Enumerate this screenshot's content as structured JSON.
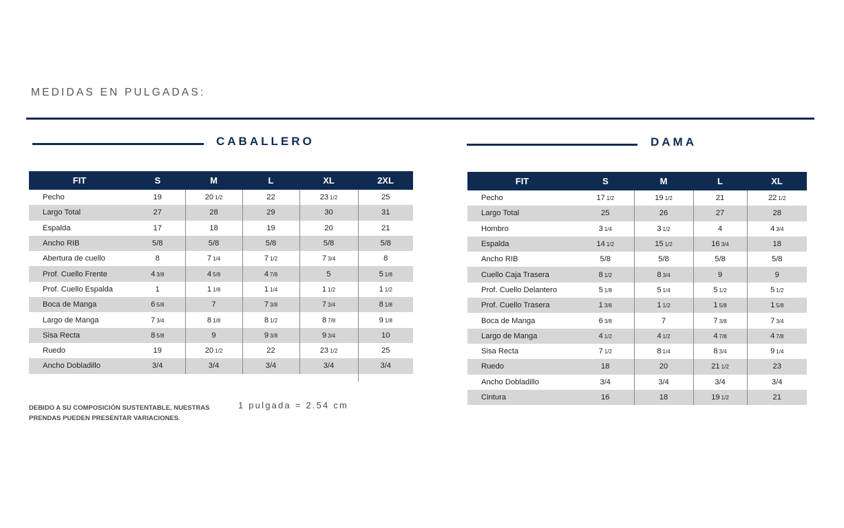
{
  "heading": "MEDIDAS EN PULGADAS:",
  "footnote": "DEBIDO A SU COMPOSICIÓN SUSTENTABLE, NUESTRAS PRENDAS PUEDEN PRESENTAR VARIACIONES.",
  "conversion": "1 pulgada = 2.54 cm",
  "caballero": {
    "title": "CABALLERO",
    "columns": [
      "FIT",
      "S",
      "M",
      "L",
      "XL",
      "2XL"
    ],
    "rows": [
      {
        "label": "Pecho",
        "values": [
          "19",
          "20 1/2",
          "22",
          "23 1/2",
          "25"
        ]
      },
      {
        "label": "Largo Total",
        "values": [
          "27",
          "28",
          "29",
          "30",
          "31"
        ]
      },
      {
        "label": "Espalda",
        "values": [
          "17",
          "18",
          "19",
          "20",
          "21"
        ]
      },
      {
        "label": "Ancho RIB",
        "values": [
          "5/8",
          "5/8",
          "5/8",
          "5/8",
          "5/8"
        ]
      },
      {
        "label": "Abertura de cuello",
        "values": [
          "8",
          "7 1/4",
          "7 1/2",
          "7 3/4",
          "8"
        ]
      },
      {
        "label": "Prof. Cuello Frente",
        "values": [
          "4 3/8",
          "4 5/8",
          "4 7/8",
          "5",
          "5 1/8"
        ]
      },
      {
        "label": "Prof. Cuello Espalda",
        "values": [
          "1",
          "1 1/8",
          "1 1/4",
          "1 1/2",
          "1 1/2"
        ]
      },
      {
        "label": "Boca de Manga",
        "values": [
          "6 5/8",
          "7",
          "7 3/8",
          "7 3/4",
          "8 1/8"
        ]
      },
      {
        "label": "Largo de Manga",
        "values": [
          "7 3/4",
          "8 1/8",
          "8 1/2",
          "8 7/8",
          "9 1/8"
        ]
      },
      {
        "label": "Sisa Recta",
        "values": [
          "8 5/8",
          "9",
          "9 3/8",
          "9 3/4",
          "10"
        ]
      },
      {
        "label": "Ruedo",
        "values": [
          "19",
          "20 1/2",
          "22",
          "23 1/2",
          "25"
        ]
      },
      {
        "label": "Ancho Dobladillo",
        "values": [
          "3/4",
          "3/4",
          "3/4",
          "3/4",
          "3/4"
        ]
      }
    ]
  },
  "dama": {
    "title": "DAMA",
    "columns": [
      "FIT",
      "S",
      "M",
      "L",
      "XL"
    ],
    "rows": [
      {
        "label": "Pecho",
        "values": [
          "17 1/2",
          "19 1/2",
          "21",
          "22 1/2"
        ]
      },
      {
        "label": "Largo Total",
        "values": [
          "25",
          "26",
          "27",
          "28"
        ]
      },
      {
        "label": "Hombro",
        "values": [
          "3 1/4",
          "3 1/2",
          "4",
          "4 3/4"
        ]
      },
      {
        "label": "Espalda",
        "values": [
          "14 1/2",
          "15 1/2",
          "16 3/4",
          "18"
        ]
      },
      {
        "label": "Ancho RIB",
        "values": [
          "5/8",
          "5/8",
          "5/8",
          "5/8"
        ]
      },
      {
        "label": "Cuello Caja Trasera",
        "values": [
          "8 1/2",
          "8 3/4",
          "9",
          "9"
        ]
      },
      {
        "label": "Prof. Cuello Delantero",
        "values": [
          "5 1/8",
          "5 1/4",
          "5 1/2",
          "5 1/2"
        ]
      },
      {
        "label": "Prof. Cuello Trasera",
        "values": [
          "1 3/8",
          "1 1/2",
          "1 5/8",
          "1 5/8"
        ]
      },
      {
        "label": "Boca de Manga",
        "values": [
          "6 3/8",
          "7",
          "7 3/8",
          "7 3/4"
        ]
      },
      {
        "label": "Largo de Manga",
        "values": [
          "4 1/2",
          "4 1/2",
          "4 7/8",
          "4 7/8"
        ]
      },
      {
        "label": "Sisa Recta",
        "values": [
          "7 1/2",
          "8 1/4",
          "8 3/4",
          "9 1/4"
        ]
      },
      {
        "label": "Ruedo",
        "values": [
          "18",
          "20",
          "21 1/2",
          "23"
        ]
      },
      {
        "label": "Ancho Dobladillo",
        "values": [
          "3/4",
          "3/4",
          "3/4",
          "3/4"
        ]
      },
      {
        "label": "Cintura",
        "values": [
          "16",
          "18",
          "19 1/2",
          "21"
        ]
      }
    ]
  }
}
